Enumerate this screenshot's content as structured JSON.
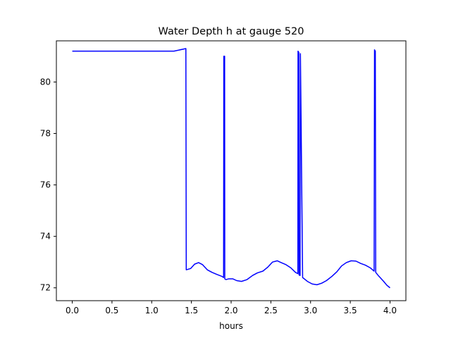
{
  "chart_data": {
    "type": "line",
    "title": "Water Depth h at gauge 520",
    "xlabel": "hours",
    "ylabel": "",
    "xlim": [
      -0.2,
      4.2
    ],
    "ylim": [
      71.5,
      81.6
    ],
    "grid": false,
    "xticks": [
      0.0,
      0.5,
      1.0,
      1.5,
      2.0,
      2.5,
      3.0,
      3.5,
      4.0
    ],
    "xtick_labels": [
      "0.0",
      "0.5",
      "1.0",
      "1.5",
      "2.0",
      "2.5",
      "3.0",
      "3.5",
      "4.0"
    ],
    "yticks": [
      72,
      74,
      76,
      78,
      80
    ],
    "ytick_labels": [
      "72",
      "74",
      "76",
      "78",
      "80"
    ],
    "series": [
      {
        "color": "#0000ff",
        "x": [
          0.0,
          1.28,
          1.43,
          1.435,
          1.49,
          1.54,
          1.59,
          1.64,
          1.7,
          1.76,
          1.82,
          1.88,
          1.905,
          1.908,
          1.918,
          1.92,
          1.935,
          1.97,
          2.02,
          2.07,
          2.13,
          2.2,
          2.27,
          2.33,
          2.4,
          2.46,
          2.52,
          2.58,
          2.63,
          2.69,
          2.75,
          2.81,
          2.84,
          2.842,
          2.852,
          2.855,
          2.868,
          2.872,
          2.9,
          2.96,
          3.02,
          3.08,
          3.14,
          3.2,
          3.27,
          3.33,
          3.39,
          3.45,
          3.51,
          3.57,
          3.63,
          3.69,
          3.75,
          3.8,
          3.805,
          3.815,
          3.82,
          3.86,
          3.92,
          3.96,
          4.0
        ],
        "y": [
          81.2,
          81.2,
          81.3,
          72.7,
          72.75,
          72.92,
          72.98,
          72.9,
          72.7,
          72.6,
          72.52,
          72.45,
          72.4,
          81.0,
          81.0,
          72.35,
          72.32,
          72.35,
          72.35,
          72.28,
          72.25,
          72.32,
          72.48,
          72.58,
          72.65,
          72.8,
          73.0,
          73.05,
          72.98,
          72.9,
          72.78,
          72.6,
          72.55,
          81.2,
          81.15,
          72.5,
          72.48,
          81.1,
          72.4,
          72.25,
          72.15,
          72.12,
          72.18,
          72.28,
          72.45,
          72.62,
          72.85,
          72.98,
          73.05,
          73.04,
          72.95,
          72.88,
          72.78,
          72.65,
          81.25,
          81.2,
          72.6,
          72.45,
          72.25,
          72.1,
          72.0
        ]
      }
    ]
  }
}
